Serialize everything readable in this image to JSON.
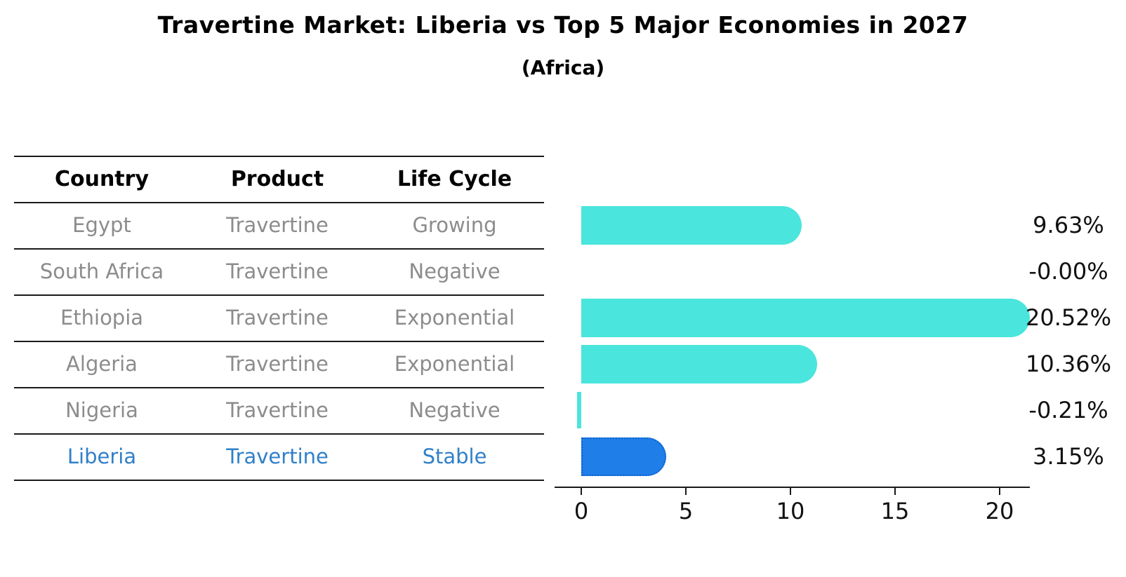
{
  "title": "Travertine Market: Liberia vs Top 5 Major Economies in 2027",
  "subtitle": "(Africa)",
  "table": {
    "headers": [
      "Country",
      "Product",
      "Life Cycle"
    ],
    "rows": [
      {
        "country": "Egypt",
        "product": "Travertine",
        "life_cycle": "Growing",
        "highlight": false
      },
      {
        "country": "South Africa",
        "product": "Travertine",
        "life_cycle": "Negative",
        "highlight": false
      },
      {
        "country": "Ethiopia",
        "product": "Travertine",
        "life_cycle": "Exponential",
        "highlight": false
      },
      {
        "country": "Algeria",
        "product": "Travertine",
        "life_cycle": "Exponential",
        "highlight": false
      },
      {
        "country": "Nigeria",
        "product": "Travertine",
        "life_cycle": "Negative",
        "highlight": false
      },
      {
        "country": "Liberia",
        "product": "Travertine",
        "life_cycle": "Stable",
        "highlight": true
      }
    ]
  },
  "chart_data": {
    "type": "bar",
    "orientation": "horizontal",
    "title": "Travertine Market: Liberia vs Top 5 Major Economies in 2027",
    "subtitle": "(Africa)",
    "categories": [
      "Egypt",
      "South Africa",
      "Ethiopia",
      "Algeria",
      "Nigeria",
      "Liberia"
    ],
    "values": [
      9.63,
      -0.0,
      20.52,
      10.36,
      -0.21,
      3.15
    ],
    "value_labels": [
      "9.63%",
      "-0.00%",
      "20.52%",
      "10.36%",
      "-0.21%",
      "3.15%"
    ],
    "xlabel": "",
    "ylabel": "",
    "xticks": [
      0,
      5,
      10,
      15,
      20
    ],
    "xlim": [
      -1.28,
      21.44
    ],
    "grid": false,
    "legend": false,
    "bar_color": "#4ae5dc",
    "highlight_index": 5,
    "highlight_color": "#1f7ee8",
    "highlight_style": "dotted-outline",
    "value_label_color": "#111111"
  },
  "colors": {
    "background": "#ffffff",
    "bar_cyan": "#4ae5dc",
    "bar_blue": "#1f7ee8",
    "bar_blue_border": "#0f63cc",
    "highlight_text": "#3080c8",
    "table_text_gray": "#8c8c8c",
    "table_header_text": "#000000",
    "line_black": "#1a1a1a"
  }
}
